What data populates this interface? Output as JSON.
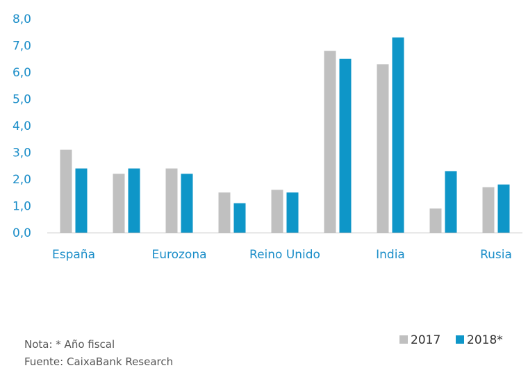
{
  "chart_data": {
    "type": "bar",
    "categories": [
      "España",
      "",
      "Eurozona",
      "",
      "Reino Unido",
      "",
      "India",
      "",
      "Rusia"
    ],
    "series": [
      {
        "name": "2017",
        "color": "#c0c0c0",
        "values": [
          3.1,
          2.2,
          2.4,
          1.5,
          1.6,
          6.8,
          6.3,
          0.9,
          1.7
        ]
      },
      {
        "name": "2018*",
        "color": "#0e96c8",
        "values": [
          2.4,
          2.4,
          2.2,
          1.1,
          1.5,
          6.5,
          7.3,
          2.3,
          1.8
        ]
      }
    ],
    "category_labels": [
      {
        "index": 0,
        "text": "España"
      },
      {
        "index": 2,
        "text": "Eurozona"
      },
      {
        "index": 4,
        "text": "Reino Unido"
      },
      {
        "index": 6,
        "text": "India"
      },
      {
        "index": 8,
        "text": "Rusia"
      }
    ],
    "yticks": [
      "0,0",
      "1,0",
      "2,0",
      "3,0",
      "4,0",
      "5,0",
      "6,0",
      "7,0",
      "8,0"
    ],
    "ylim": [
      0,
      8
    ],
    "grid": false,
    "legend_position": "bottom-right",
    "title": "",
    "xlabel": "",
    "ylabel": ""
  },
  "notes": {
    "note": "Nota: * Año fiscal",
    "source": "Fuente: CaixaBank Research"
  }
}
